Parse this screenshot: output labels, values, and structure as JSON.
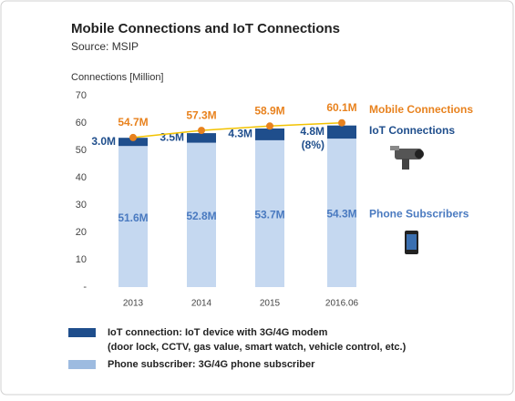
{
  "chart_data": {
    "type": "bar",
    "title": "Mobile Connections and IoT Connections",
    "subtitle": "Source: MSIP",
    "y_label": "Connections [Million]",
    "categories": [
      "2013",
      "2014",
      "2015",
      "2016.06"
    ],
    "ylim": [
      0,
      70
    ],
    "yticks": [
      {
        "value": 0,
        "label": "-"
      },
      10,
      20,
      30,
      40,
      50,
      60,
      70
    ],
    "stacked": true,
    "series": [
      {
        "name": "Phone Subscribers",
        "color": "#c5d8f0",
        "values": [
          51.6,
          52.8,
          53.7,
          54.3
        ],
        "value_labels": [
          "51.6M",
          "52.8M",
          "53.7M",
          "54.3M"
        ],
        "label_color": "#4a7ac0"
      },
      {
        "name": "IoT Connections",
        "color": "#1f4e8c",
        "values": [
          3.0,
          3.5,
          4.3,
          4.8
        ],
        "value_labels": [
          "3.0M",
          "3.5M",
          "4.3M",
          "4.8M"
        ],
        "label_color": "#1f4e8c"
      },
      {
        "name": "Mobile Connections",
        "type": "line",
        "color": "#f2c200",
        "marker_color": "#e8821e",
        "values": [
          54.7,
          57.3,
          58.9,
          60.1
        ],
        "value_labels": [
          "54.7M",
          "57.3M",
          "58.9M",
          "60.1M"
        ],
        "label_color": "#e8821e"
      }
    ],
    "annotations": [
      {
        "text": "(8%)",
        "category": 3
      }
    ],
    "legend": [
      {
        "color": "#1f4e8c",
        "lines": [
          "IoT connection: IoT device with 3G/4G modem",
          "(door lock, CCTV, gas value, smart watch, vehicle control, etc.)"
        ]
      },
      {
        "color": "#9dbbe0",
        "lines": [
          "Phone subscriber: 3G/4G phone subscriber"
        ]
      }
    ]
  }
}
